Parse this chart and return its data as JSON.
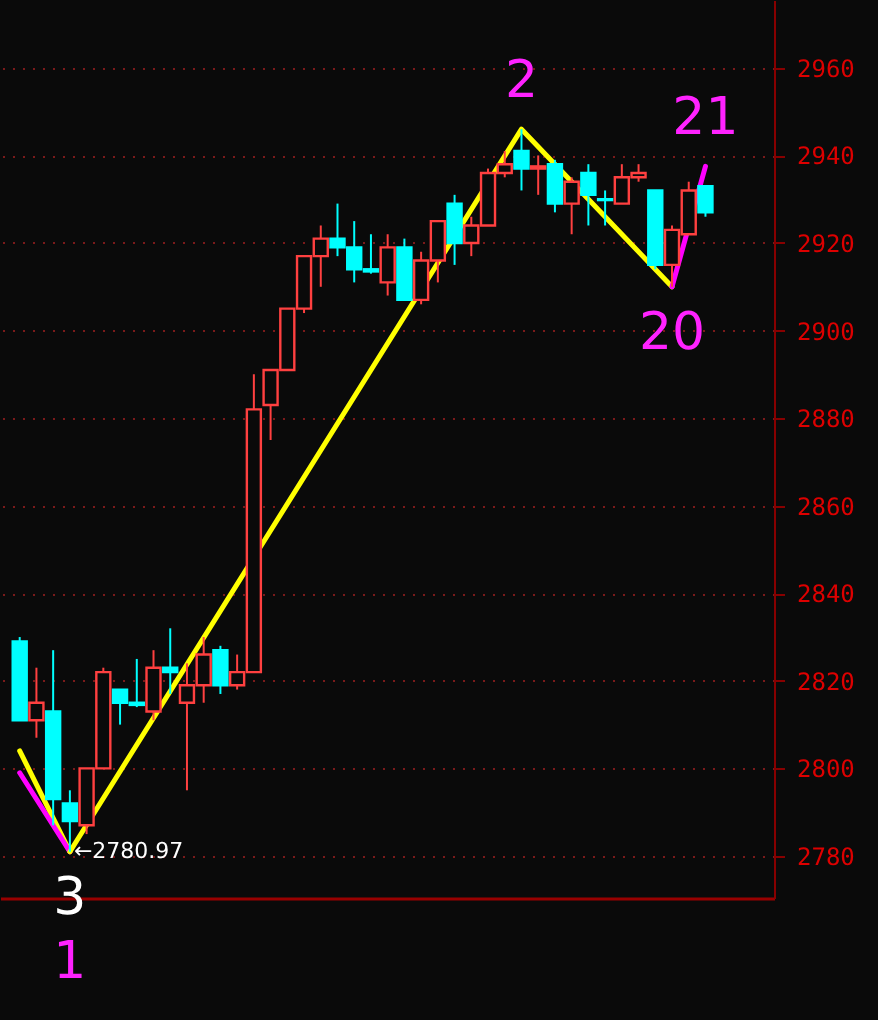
{
  "chart_data": {
    "type": "candlestick",
    "categories": [
      null,
      null,
      null,
      null,
      null,
      null,
      null,
      null,
      null,
      null,
      null,
      null,
      null,
      null,
      null,
      null,
      null,
      null,
      null,
      null,
      null,
      null,
      null,
      null,
      null,
      null,
      null,
      null,
      null,
      null,
      null,
      null,
      null,
      null,
      null,
      null,
      null,
      null,
      null,
      null,
      null,
      null
    ],
    "ohlc": [
      [
        2829,
        2830,
        2811,
        2811
      ],
      [
        2811,
        2823,
        2807,
        2815
      ],
      [
        2813,
        2827,
        2787,
        2793
      ],
      [
        2792,
        2795,
        2780.97,
        2788
      ],
      [
        2787,
        2800,
        2785,
        2800
      ],
      [
        2800,
        2823,
        2800,
        2822
      ],
      [
        2818,
        2818,
        2810,
        2815
      ],
      [
        2815,
        2825,
        2814,
        2814.5
      ],
      [
        2813,
        2827,
        2811,
        2823
      ],
      [
        2823,
        2832,
        2817,
        2822
      ],
      [
        2815,
        2824,
        2795,
        2819
      ],
      [
        2819,
        2830,
        2815,
        2826
      ],
      [
        2827,
        2828,
        2817,
        2819
      ],
      [
        2819,
        2826,
        2818,
        2822
      ],
      [
        2822,
        2890,
        2822,
        2882
      ],
      [
        2883,
        2891,
        2875,
        2891
      ],
      [
        2891,
        2905,
        2891,
        2905
      ],
      [
        2905,
        2917,
        2904,
        2917
      ],
      [
        2917,
        2924,
        2910,
        2921
      ],
      [
        2921,
        2929,
        2917,
        2919
      ],
      [
        2919,
        2925,
        2911,
        2914
      ],
      [
        2914,
        2922,
        2913,
        2913.5
      ],
      [
        2911,
        2922,
        2908,
        2919
      ],
      [
        2919,
        2921,
        2907,
        2907
      ],
      [
        2907,
        2918,
        2906,
        2916
      ],
      [
        2916,
        2925,
        2911,
        2925
      ],
      [
        2929,
        2931,
        2915,
        2920
      ],
      [
        2920,
        2926,
        2917,
        2924
      ],
      [
        2924,
        2937,
        2924,
        2936
      ],
      [
        2936,
        2941,
        2935,
        2938
      ],
      [
        2941,
        2946,
        2932,
        2937
      ],
      [
        2937,
        2940,
        2931,
        2937.5
      ],
      [
        2938,
        2939,
        2927,
        2929
      ],
      [
        2929,
        2935,
        2922,
        2934
      ],
      [
        2936,
        2938,
        2924,
        2931
      ],
      [
        2930,
        2932,
        2924,
        2929.8
      ],
      [
        2929,
        2938,
        2929,
        2935
      ],
      [
        2935,
        2938,
        2934,
        2936
      ],
      [
        2932,
        2932,
        2914,
        2915
      ],
      [
        2915,
        2924,
        2910,
        2923
      ],
      [
        2922,
        2934,
        2922,
        2932
      ],
      [
        2933,
        2933,
        2926,
        2927
      ]
    ],
    "colors": [
      "#00ffff",
      "#ff4040",
      "#00ffff",
      "#00ffff",
      "#ff4040",
      "#ff4040",
      "#00ffff",
      "#00ffff",
      "#ff4040",
      "#00ffff",
      "#ff4040",
      "#ff4040",
      "#00ffff",
      "#ff4040",
      "#ff4040",
      "#ff4040",
      "#ff4040",
      "#ff4040",
      "#ff4040",
      "#00ffff",
      "#00ffff",
      "#00ffff",
      "#ff4040",
      "#00ffff",
      "#ff4040",
      "#ff4040",
      "#00ffff",
      "#ff4040",
      "#ff4040",
      "#ff4040",
      "#00ffff",
      "#ff4040",
      "#00ffff",
      "#ff4040",
      "#00ffff",
      "#00ffff",
      "#ff4040",
      "#ff4040",
      "#00ffff",
      "#ff4040",
      "#ff4040",
      "#00ffff"
    ],
    "value_labels": [
      null,
      null,
      null,
      "←2780.97",
      null,
      null,
      null,
      null,
      null,
      null,
      null,
      null,
      null,
      null,
      null,
      null,
      null,
      null,
      null,
      null,
      null,
      null,
      null,
      null,
      null,
      null,
      null,
      null,
      null,
      null,
      null,
      null,
      null,
      null,
      null,
      null,
      null,
      null,
      null,
      null,
      null,
      null
    ],
    "series": [
      {
        "type": "line",
        "color": "#ffff00",
        "values": [
          2804,
          null,
          null,
          2780.97,
          null,
          null,
          null,
          null,
          null,
          null,
          null,
          null,
          null,
          null,
          null,
          null,
          null,
          null,
          null,
          null,
          null,
          null,
          null,
          null,
          null,
          null,
          null,
          null,
          null,
          null,
          null,
          null,
          null,
          null,
          null,
          null,
          null,
          null,
          null,
          null,
          null,
          null
        ]
      },
      {
        "type": "line",
        "color": "#ff00ff",
        "values": [
          2799,
          null,
          null,
          2780.97,
          null,
          null,
          null,
          null,
          null,
          null,
          null,
          null,
          null,
          null,
          null,
          null,
          null,
          null,
          null,
          null,
          null,
          null,
          null,
          null,
          null,
          null,
          null,
          null,
          null,
          null,
          null,
          null,
          null,
          null,
          null,
          null,
          null,
          null,
          null,
          null,
          null,
          null
        ]
      },
      {
        "type": "line",
        "color": "#ffff00",
        "values": [
          null,
          null,
          null,
          2780.97,
          null,
          null,
          null,
          null,
          null,
          null,
          null,
          null,
          null,
          null,
          null,
          null,
          null,
          null,
          null,
          null,
          null,
          null,
          null,
          null,
          null,
          null,
          null,
          null,
          null,
          null,
          2946,
          null,
          null,
          null,
          null,
          null,
          null,
          null,
          null,
          2910,
          null,
          null
        ]
      },
      {
        "type": "line",
        "color": "#ff00ff",
        "values": [
          null,
          null,
          null,
          null,
          null,
          null,
          null,
          null,
          null,
          null,
          null,
          null,
          null,
          null,
          null,
          null,
          null,
          null,
          null,
          null,
          null,
          null,
          null,
          null,
          null,
          null,
          null,
          null,
          null,
          null,
          null,
          null,
          null,
          null,
          null,
          null,
          null,
          null,
          null,
          2910,
          null,
          2937.5
        ]
      }
    ],
    "annotations": [
      {
        "text": "2",
        "y": 2946
      },
      {
        "text": "21",
        "y": 2937.5
      },
      {
        "text": "20",
        "y": 2910
      },
      {
        "text": "3",
        "y": 2780.97
      },
      {
        "text": "1",
        "y": 2780.97
      }
    ],
    "ylim": [
      2770.4,
      2975.5
    ],
    "yticks": [
      2780,
      2800,
      2820,
      2840,
      2860,
      2880,
      2900,
      2920,
      2940,
      2960
    ],
    "grid": "y",
    "tick_labels": "y"
  }
}
